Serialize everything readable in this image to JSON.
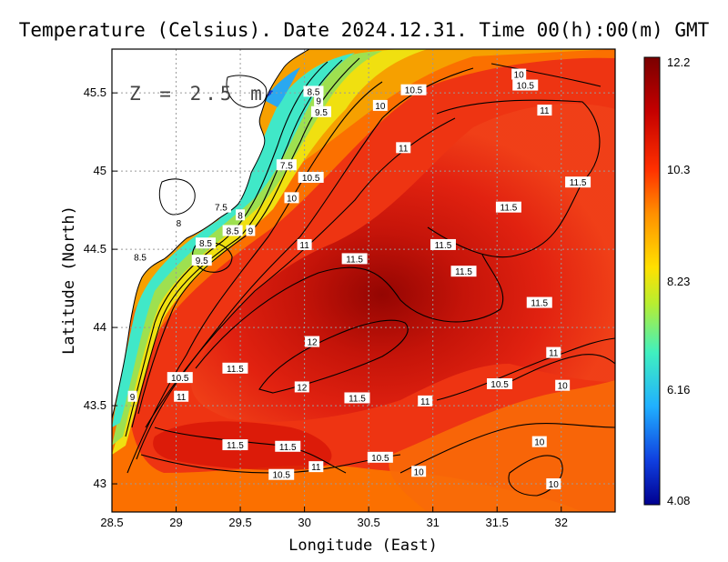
{
  "title": "Temperature (Celsius). Date 2024.12.31. Time 00(h):00(m) GMT",
  "depth_label": "Z = 2.5 m",
  "x_axis": {
    "label": "Longitude (East)",
    "ticks": [
      {
        "value": 28.5,
        "label": "28.5"
      },
      {
        "value": 29,
        "label": "29"
      },
      {
        "value": 29.5,
        "label": "29.5"
      },
      {
        "value": 30,
        "label": "30"
      },
      {
        "value": 30.5,
        "label": "30.5"
      },
      {
        "value": 31,
        "label": "31"
      },
      {
        "value": 31.5,
        "label": "31.5"
      },
      {
        "value": 32,
        "label": "32"
      }
    ]
  },
  "y_axis": {
    "label": "Latitude (North)",
    "ticks": [
      {
        "value": 43,
        "label": "43"
      },
      {
        "value": 43.5,
        "label": "43.5"
      },
      {
        "value": 44,
        "label": "44"
      },
      {
        "value": 44.5,
        "label": "44.5"
      },
      {
        "value": 45,
        "label": "45"
      },
      {
        "value": 45.5,
        "label": "45.5"
      }
    ]
  },
  "colorbar": {
    "labels": [
      "12.2",
      "10.3",
      "8.23",
      "6.16",
      "4.08"
    ],
    "colors": [
      "#7a0000",
      "#c40000",
      "#ff3000",
      "#ff9000",
      "#ffe000",
      "#b8ee30",
      "#40f0c0",
      "#20b0ff",
      "#1040e0",
      "#000090"
    ]
  },
  "contour_labels": [
    {
      "text": "10",
      "lon": 31.67,
      "lat": 45.62
    },
    {
      "text": "10.5",
      "lon": 31.72,
      "lat": 45.55
    },
    {
      "text": "10.5",
      "lon": 30.85,
      "lat": 45.52
    },
    {
      "text": "10",
      "lon": 30.59,
      "lat": 45.42
    },
    {
      "text": "11",
      "lon": 31.87,
      "lat": 45.39
    },
    {
      "text": "8.5",
      "lon": 30.07,
      "lat": 45.51
    },
    {
      "text": "9",
      "lon": 30.11,
      "lat": 45.45
    },
    {
      "text": "9.5",
      "lon": 30.13,
      "lat": 45.38
    },
    {
      "text": "11",
      "lon": 30.77,
      "lat": 45.15
    },
    {
      "text": "7.5",
      "lon": 29.86,
      "lat": 45.04
    },
    {
      "text": "10.5",
      "lon": 30.05,
      "lat": 44.96
    },
    {
      "text": "11.5",
      "lon": 32.13,
      "lat": 44.93
    },
    {
      "text": "10",
      "lon": 29.9,
      "lat": 44.83
    },
    {
      "text": "7.5",
      "lon": 29.35,
      "lat": 44.77
    },
    {
      "text": "8",
      "lon": 29.5,
      "lat": 44.72
    },
    {
      "text": "11.5",
      "lon": 31.59,
      "lat": 44.77
    },
    {
      "text": "8",
      "lon": 29.02,
      "lat": 44.67
    },
    {
      "text": "8.5",
      "lon": 29.44,
      "lat": 44.62
    },
    {
      "text": "9",
      "lon": 29.58,
      "lat": 44.62
    },
    {
      "text": "8.5",
      "lon": 29.23,
      "lat": 44.54
    },
    {
      "text": "11",
      "lon": 30.0,
      "lat": 44.53
    },
    {
      "text": "11.5",
      "lon": 31.08,
      "lat": 44.53
    },
    {
      "text": "9.5",
      "lon": 29.2,
      "lat": 44.43
    },
    {
      "text": "8.5",
      "lon": 28.72,
      "lat": 44.45
    },
    {
      "text": "11.5",
      "lon": 30.39,
      "lat": 44.44
    },
    {
      "text": "11.5",
      "lon": 31.24,
      "lat": 44.36
    },
    {
      "text": "11.5",
      "lon": 31.83,
      "lat": 44.16
    },
    {
      "text": "12",
      "lon": 30.06,
      "lat": 43.91
    },
    {
      "text": "11",
      "lon": 31.94,
      "lat": 43.84
    },
    {
      "text": "11.5",
      "lon": 29.46,
      "lat": 43.74
    },
    {
      "text": "10.5",
      "lon": 29.03,
      "lat": 43.68
    },
    {
      "text": "10.5",
      "lon": 31.52,
      "lat": 43.64
    },
    {
      "text": "12",
      "lon": 29.98,
      "lat": 43.62
    },
    {
      "text": "10",
      "lon": 32.01,
      "lat": 43.63
    },
    {
      "text": "11",
      "lon": 29.04,
      "lat": 43.56
    },
    {
      "text": "9",
      "lon": 28.66,
      "lat": 43.56
    },
    {
      "text": "11.5",
      "lon": 30.41,
      "lat": 43.55
    },
    {
      "text": "11",
      "lon": 30.94,
      "lat": 43.53
    },
    {
      "text": "10",
      "lon": 31.83,
      "lat": 43.27
    },
    {
      "text": "11.5",
      "lon": 29.46,
      "lat": 43.25
    },
    {
      "text": "11.5",
      "lon": 29.87,
      "lat": 43.24
    },
    {
      "text": "10.5",
      "lon": 30.59,
      "lat": 43.17
    },
    {
      "text": "11",
      "lon": 30.09,
      "lat": 43.11
    },
    {
      "text": "10",
      "lon": 30.89,
      "lat": 43.08
    },
    {
      "text": "10.5",
      "lon": 29.82,
      "lat": 43.06
    },
    {
      "text": "10",
      "lon": 31.94,
      "lat": 43.0
    }
  ]
}
